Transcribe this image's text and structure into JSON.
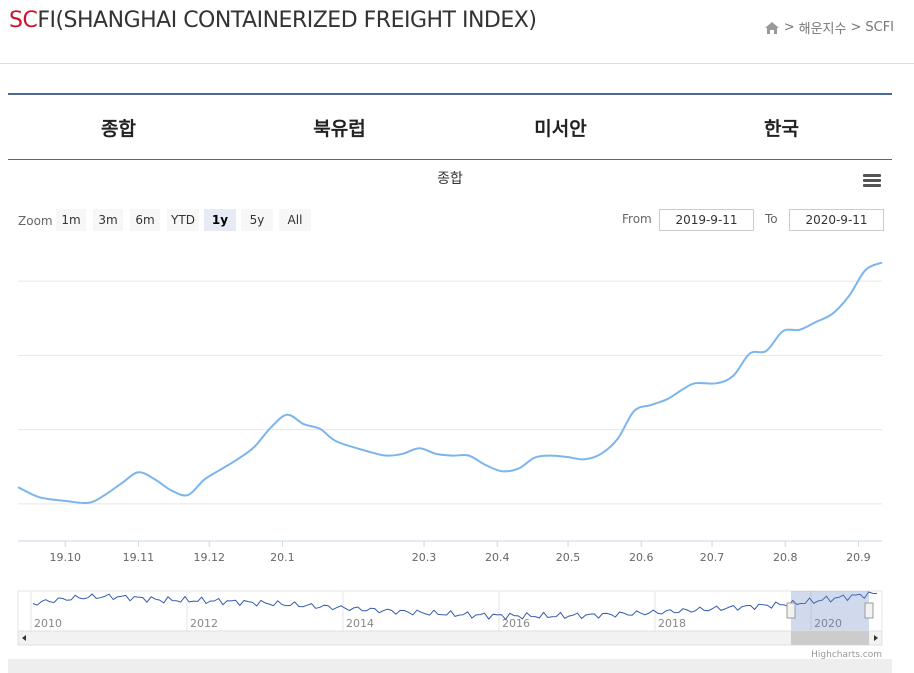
{
  "header": {
    "title_sc": "SC",
    "title_rest": "FI(SHANGHAI CONTAINERIZED FREIGHT INDEX)",
    "breadcrumb": [
      ">",
      "해운지수",
      ">",
      "SCFI"
    ]
  },
  "tabs": [
    {
      "label": "종합"
    },
    {
      "label": "북유럽"
    },
    {
      "label": "미서안"
    },
    {
      "label": "한국"
    }
  ],
  "chart": {
    "title": "종합",
    "zoom_label": "Zoom",
    "zoom_buttons": [
      "1m",
      "3m",
      "6m",
      "YTD",
      "1y",
      "5y",
      "All"
    ],
    "active_zoom": "1y",
    "from_label": "From",
    "from_value": "2019-9-11",
    "to_label": "To",
    "to_value": "2020-9-11",
    "credit": "Highcharts.com",
    "line_color": "#7cb5ec"
  },
  "chart_data": {
    "type": "line",
    "x": [
      "2019-09-11",
      "2019-09-20",
      "2019-10-01",
      "2019-10-11",
      "2019-10-18",
      "2019-10-25",
      "2019-11-01",
      "2019-11-08",
      "2019-11-15",
      "2019-11-22",
      "2019-11-29",
      "2019-12-06",
      "2019-12-13",
      "2019-12-20",
      "2019-12-27",
      "2020-01-03",
      "2020-01-10",
      "2020-01-17",
      "2020-01-24",
      "2020-02-07",
      "2020-02-14",
      "2020-02-21",
      "2020-02-28",
      "2020-03-06",
      "2020-03-13",
      "2020-03-20",
      "2020-03-27",
      "2020-04-03",
      "2020-04-10",
      "2020-04-17",
      "2020-04-24",
      "2020-05-01",
      "2020-05-08",
      "2020-05-15",
      "2020-05-22",
      "2020-05-29",
      "2020-06-05",
      "2020-06-12",
      "2020-06-19",
      "2020-06-24",
      "2020-07-03",
      "2020-07-10",
      "2020-07-17",
      "2020-07-24",
      "2020-07-31",
      "2020-08-07",
      "2020-08-14",
      "2020-08-21",
      "2020-08-28",
      "2020-09-04",
      "2020-09-11"
    ],
    "y": [
      845,
      818,
      808,
      803,
      825,
      856,
      885,
      866,
      836,
      824,
      866,
      893,
      920,
      953,
      1005,
      1040,
      1015,
      1002,
      968,
      940,
      930,
      935,
      950,
      935,
      930,
      930,
      905,
      888,
      895,
      925,
      930,
      926,
      920,
      935,
      975,
      1050,
      1066,
      1082,
      1110,
      1125,
      1125,
      1145,
      1205,
      1212,
      1265,
      1269,
      1290,
      1312,
      1360,
      1430,
      1450
    ],
    "x_ticks": [
      "19.10",
      "19.11",
      "19.12",
      "20.1",
      "20.3",
      "20.4",
      "20.5",
      "20.6",
      "20.7",
      "20.8",
      "20.9"
    ],
    "navigator_years": [
      "2010",
      "2012",
      "2014",
      "2016",
      "2018",
      "2020"
    ],
    "grid": true,
    "series": [
      {
        "values_ref": "y"
      }
    ]
  }
}
